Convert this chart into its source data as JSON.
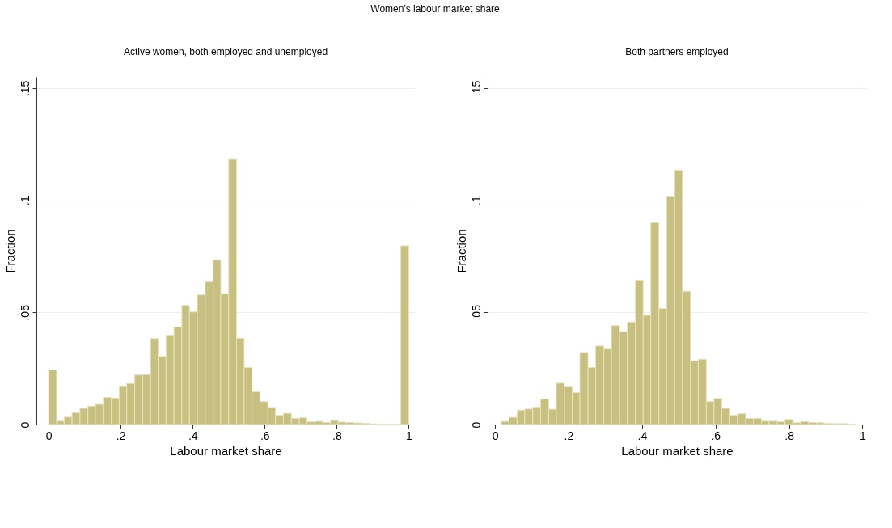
{
  "chart_data": [
    {
      "type": "histogram",
      "title": "Active women, both employed and unemployed",
      "annotations": [
        "Women's labour market share"
      ],
      "xlabel": "Labour market share",
      "ylabel": "Fraction",
      "color": "#c8c07f",
      "bins": [
        0,
        0.022,
        0.043,
        0.065,
        0.087,
        0.109,
        0.13,
        0.152,
        0.174,
        0.196,
        0.217,
        0.239,
        0.261,
        0.283,
        0.304,
        0.326,
        0.348,
        0.37,
        0.391,
        0.413,
        0.435,
        0.457,
        0.478,
        0.5,
        0.522,
        0.543,
        0.565,
        0.587,
        0.609,
        0.63,
        0.652,
        0.674,
        0.696,
        0.717,
        0.739,
        0.761,
        0.783,
        0.804,
        0.826,
        0.848,
        0.87,
        0.891,
        0.913,
        0.935,
        0.957,
        0.978,
        1
      ],
      "values": [
        0.0243,
        0.0015,
        0.0033,
        0.0053,
        0.0072,
        0.0082,
        0.009,
        0.0121,
        0.0117,
        0.0169,
        0.0183,
        0.0221,
        0.0223,
        0.0383,
        0.0303,
        0.0398,
        0.0435,
        0.0531,
        0.0502,
        0.0578,
        0.0636,
        0.0733,
        0.0583,
        0.1182,
        0.0385,
        0.0254,
        0.0146,
        0.0102,
        0.0076,
        0.0041,
        0.005,
        0.0027,
        0.003,
        0.0012,
        0.0014,
        0.0009,
        0.0018,
        0.0011,
        0.0009,
        0.0007,
        0.0005,
        0.0003,
        0.0002,
        0.0002,
        0.0002,
        0.0797
      ],
      "xlim": [
        -0.034,
        1.017
      ],
      "ylim": [
        0,
        0.155
      ],
      "xticks": [
        0,
        {
          "value": 0.2,
          "label": ".2"
        },
        {
          "value": 0.4,
          "label": ".4"
        },
        {
          "value": 0.6,
          "label": ".6"
        },
        {
          "value": 0.8,
          "label": ".8"
        },
        1
      ],
      "yticks": [
        0,
        {
          "value": 0.05,
          "label": ".05"
        },
        {
          "value": 0.1,
          "label": ".1"
        },
        {
          "value": 0.15,
          "label": ".15"
        }
      ],
      "grid": "y"
    },
    {
      "type": "histogram",
      "title": "Both partners employed",
      "xlabel": "Labour market share",
      "ylabel": "Fraction",
      "color": "#c8c07f",
      "bins": [
        0.017,
        0.038,
        0.06,
        0.081,
        0.103,
        0.124,
        0.146,
        0.167,
        0.189,
        0.21,
        0.231,
        0.253,
        0.274,
        0.296,
        0.317,
        0.339,
        0.36,
        0.382,
        0.403,
        0.424,
        0.446,
        0.467,
        0.489,
        0.51,
        0.532,
        0.553,
        0.575,
        0.596,
        0.617,
        0.639,
        0.66,
        0.682,
        0.703,
        0.725,
        0.746,
        0.768,
        0.789,
        0.81,
        0.832,
        0.853,
        0.875,
        0.896,
        0.918,
        0.939,
        0.961,
        0.982
      ],
      "values": [
        0.0014,
        0.0032,
        0.0064,
        0.0069,
        0.0078,
        0.0113,
        0.0068,
        0.0184,
        0.0167,
        0.0142,
        0.0321,
        0.0254,
        0.035,
        0.0336,
        0.0441,
        0.0414,
        0.0457,
        0.0643,
        0.0487,
        0.09,
        0.0517,
        0.1015,
        0.1134,
        0.0594,
        0.0284,
        0.0291,
        0.0102,
        0.0116,
        0.0072,
        0.0041,
        0.0048,
        0.0027,
        0.0027,
        0.0015,
        0.0015,
        0.0012,
        0.0022,
        0.0008,
        0.0013,
        0.0009,
        0.0008,
        0.0005,
        0.0004,
        0.0004,
        0.0002
      ],
      "xlim": [
        -0.02,
        1.01
      ],
      "ylim": [
        0,
        0.155
      ],
      "xticks": [
        0,
        {
          "value": 0.2,
          "label": ".2"
        },
        {
          "value": 0.4,
          "label": ".4"
        },
        {
          "value": 0.6,
          "label": ".6"
        },
        {
          "value": 0.8,
          "label": ".8"
        },
        1
      ],
      "yticks": [
        0,
        {
          "value": 0.05,
          "label": ".05"
        },
        {
          "value": 0.1,
          "label": ".1"
        },
        {
          "value": 0.15,
          "label": ".15"
        }
      ],
      "grid": "y"
    }
  ]
}
